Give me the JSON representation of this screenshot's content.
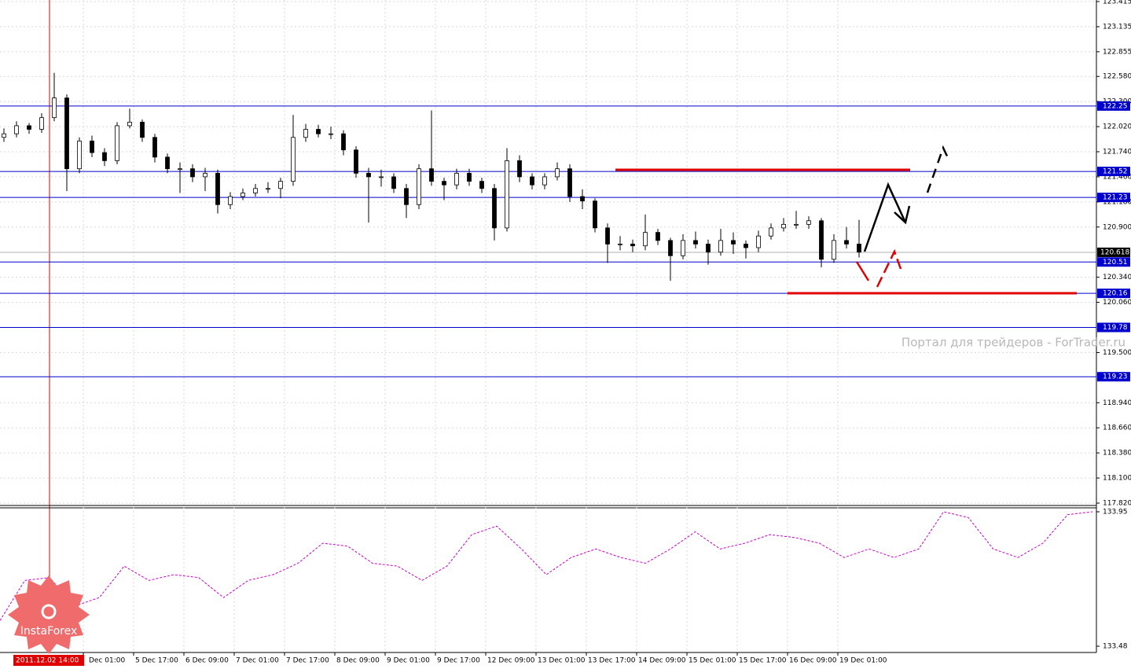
{
  "chart_data": [
    {
      "type": "candlestick",
      "categories": [
        "Dec 01:00",
        "5 Dec 17:00",
        "6 Dec 09:00",
        "7 Dec 01:00",
        "7 Dec 17:00",
        "8 Dec 09:00",
        "9 Dec 01:00",
        "9 Dec 17:00",
        "12 Dec 09:00",
        "13 Dec 01:00",
        "13 Dec 17:00",
        "14 Dec 09:00",
        "15 Dec 01:00",
        "15 Dec 17:00",
        "16 Dec 09:00",
        "19 Dec 01:00"
      ],
      "cursor_label": "2011.12.02 14:00",
      "open": [
        121.9,
        121.94,
        122.03,
        121.99,
        122.12,
        122.34,
        121.55,
        121.86,
        121.73,
        121.64,
        122.03,
        122.07,
        121.9,
        121.68,
        121.55,
        121.55,
        121.46,
        121.5,
        121.15,
        121.24,
        121.28,
        121.33,
        121.33,
        121.41,
        121.9,
        121.99,
        121.94,
        121.94,
        121.76,
        121.5,
        121.46,
        121.46,
        121.33,
        121.15,
        121.55,
        121.41,
        121.37,
        121.5,
        121.41,
        121.33,
        120.89,
        121.64,
        121.46,
        121.37,
        121.46,
        121.55,
        121.24,
        121.19,
        120.89,
        120.71,
        120.71,
        120.69,
        120.84,
        120.75,
        120.58,
        120.75,
        120.71,
        120.62,
        120.75,
        120.71,
        120.67,
        120.8,
        120.89,
        120.93,
        120.93,
        120.97,
        120.54,
        120.75,
        120.71
      ],
      "high": [
        122.0,
        122.08,
        122.06,
        122.17,
        122.62,
        122.38,
        121.9,
        121.92,
        121.78,
        122.07,
        122.22,
        122.1,
        121.94,
        121.72,
        121.62,
        121.6,
        121.56,
        121.54,
        121.29,
        121.33,
        121.38,
        121.4,
        121.45,
        122.15,
        122.05,
        122.04,
        122.02,
        121.98,
        121.8,
        121.56,
        121.54,
        121.5,
        121.38,
        121.6,
        122.2,
        121.45,
        121.55,
        121.55,
        121.45,
        121.38,
        121.78,
        121.7,
        121.5,
        121.5,
        121.62,
        121.6,
        121.32,
        121.22,
        120.94,
        120.8,
        120.76,
        121.04,
        120.88,
        120.78,
        120.82,
        120.85,
        120.76,
        120.88,
        120.84,
        120.75,
        120.86,
        120.94,
        121.0,
        121.08,
        121.02,
        121.0,
        120.82,
        120.9,
        120.98
      ],
      "low": [
        121.85,
        121.9,
        121.94,
        121.95,
        122.08,
        121.3,
        121.5,
        121.68,
        121.58,
        121.6,
        122.0,
        121.85,
        121.62,
        121.5,
        121.28,
        121.4,
        121.3,
        121.05,
        121.1,
        121.2,
        121.24,
        121.28,
        121.22,
        121.36,
        121.85,
        121.9,
        121.88,
        121.7,
        121.45,
        120.95,
        121.35,
        121.28,
        121.0,
        121.1,
        121.36,
        121.2,
        121.32,
        121.36,
        121.28,
        120.75,
        120.85,
        121.4,
        121.32,
        121.32,
        121.42,
        121.18,
        121.1,
        120.84,
        120.5,
        120.64,
        120.62,
        120.64,
        120.7,
        120.3,
        120.54,
        120.66,
        120.48,
        120.58,
        120.6,
        120.55,
        120.62,
        120.76,
        120.85,
        120.88,
        120.88,
        120.45,
        120.5,
        120.66,
        120.56
      ],
      "close": [
        121.94,
        122.03,
        121.99,
        122.12,
        122.34,
        121.55,
        121.86,
        121.73,
        121.64,
        122.03,
        122.07,
        121.9,
        121.68,
        121.55,
        121.55,
        121.46,
        121.5,
        121.15,
        121.24,
        121.28,
        121.33,
        121.33,
        121.41,
        121.9,
        121.99,
        121.94,
        121.94,
        121.76,
        121.5,
        121.46,
        121.46,
        121.33,
        121.15,
        121.55,
        121.41,
        121.37,
        121.5,
        121.41,
        121.33,
        120.89,
        121.64,
        121.46,
        121.37,
        121.46,
        121.55,
        121.24,
        121.19,
        120.89,
        120.71,
        120.71,
        120.69,
        120.84,
        120.75,
        120.58,
        120.75,
        120.71,
        120.62,
        120.75,
        120.71,
        120.67,
        120.8,
        120.89,
        120.93,
        120.93,
        120.97,
        120.54,
        120.75,
        120.71,
        120.62
      ],
      "ylim": [
        117.82,
        123.415
      ],
      "yticks": [
        123.415,
        123.135,
        122.855,
        {
          "value": 122.58,
          "label": "122.580"
        },
        {
          "value": 122.3,
          "label": "122.300"
        },
        {
          "value": 122.02,
          "label": "122.020"
        },
        {
          "value": 121.74,
          "label": "121.740"
        },
        {
          "value": 121.46,
          "label": "121.460"
        },
        {
          "value": 121.18,
          "label": "121.180"
        },
        {
          "value": 120.9,
          "label": "120.900"
        },
        {
          "value": 120.34,
          "label": "120.340"
        },
        {
          "value": 120.06,
          "label": "120.060"
        },
        {
          "value": 119.5,
          "label": "119.500"
        },
        {
          "value": 118.94,
          "label": "118.940"
        },
        {
          "value": 118.66,
          "label": "118.660"
        },
        {
          "value": 118.38,
          "label": "118.380"
        },
        {
          "value": 118.1,
          "label": "118.100"
        },
        {
          "value": 117.82,
          "label": "117.820"
        }
      ],
      "levels": [
        122.25,
        121.52,
        121.23,
        120.51,
        120.16,
        119.78,
        119.23
      ],
      "level_color": "#0000cc",
      "last_price": 120.618,
      "grid": true,
      "watermark": "Портал для трейдеров - ForTrader.ru",
      "logo_text": "InstaForex"
    },
    {
      "type": "line",
      "values": [
        133.57,
        133.71,
        133.72,
        133.62,
        133.65,
        133.76,
        133.71,
        133.73,
        133.72,
        133.65,
        133.71,
        133.73,
        133.77,
        133.84,
        133.83,
        133.77,
        133.76,
        133.71,
        133.76,
        133.87,
        133.9,
        133.82,
        133.73,
        133.79,
        133.82,
        133.79,
        133.77,
        133.82,
        133.88,
        133.82,
        133.84,
        133.87,
        133.86,
        133.84,
        133.79,
        133.82,
        133.79,
        133.82,
        133.95,
        133.93,
        133.82,
        133.79,
        133.84,
        133.94,
        133.95
      ],
      "color": "#cc00cc",
      "ylim": [
        133.48,
        133.95
      ],
      "yticks": [
        133.95,
        133.48
      ]
    }
  ]
}
